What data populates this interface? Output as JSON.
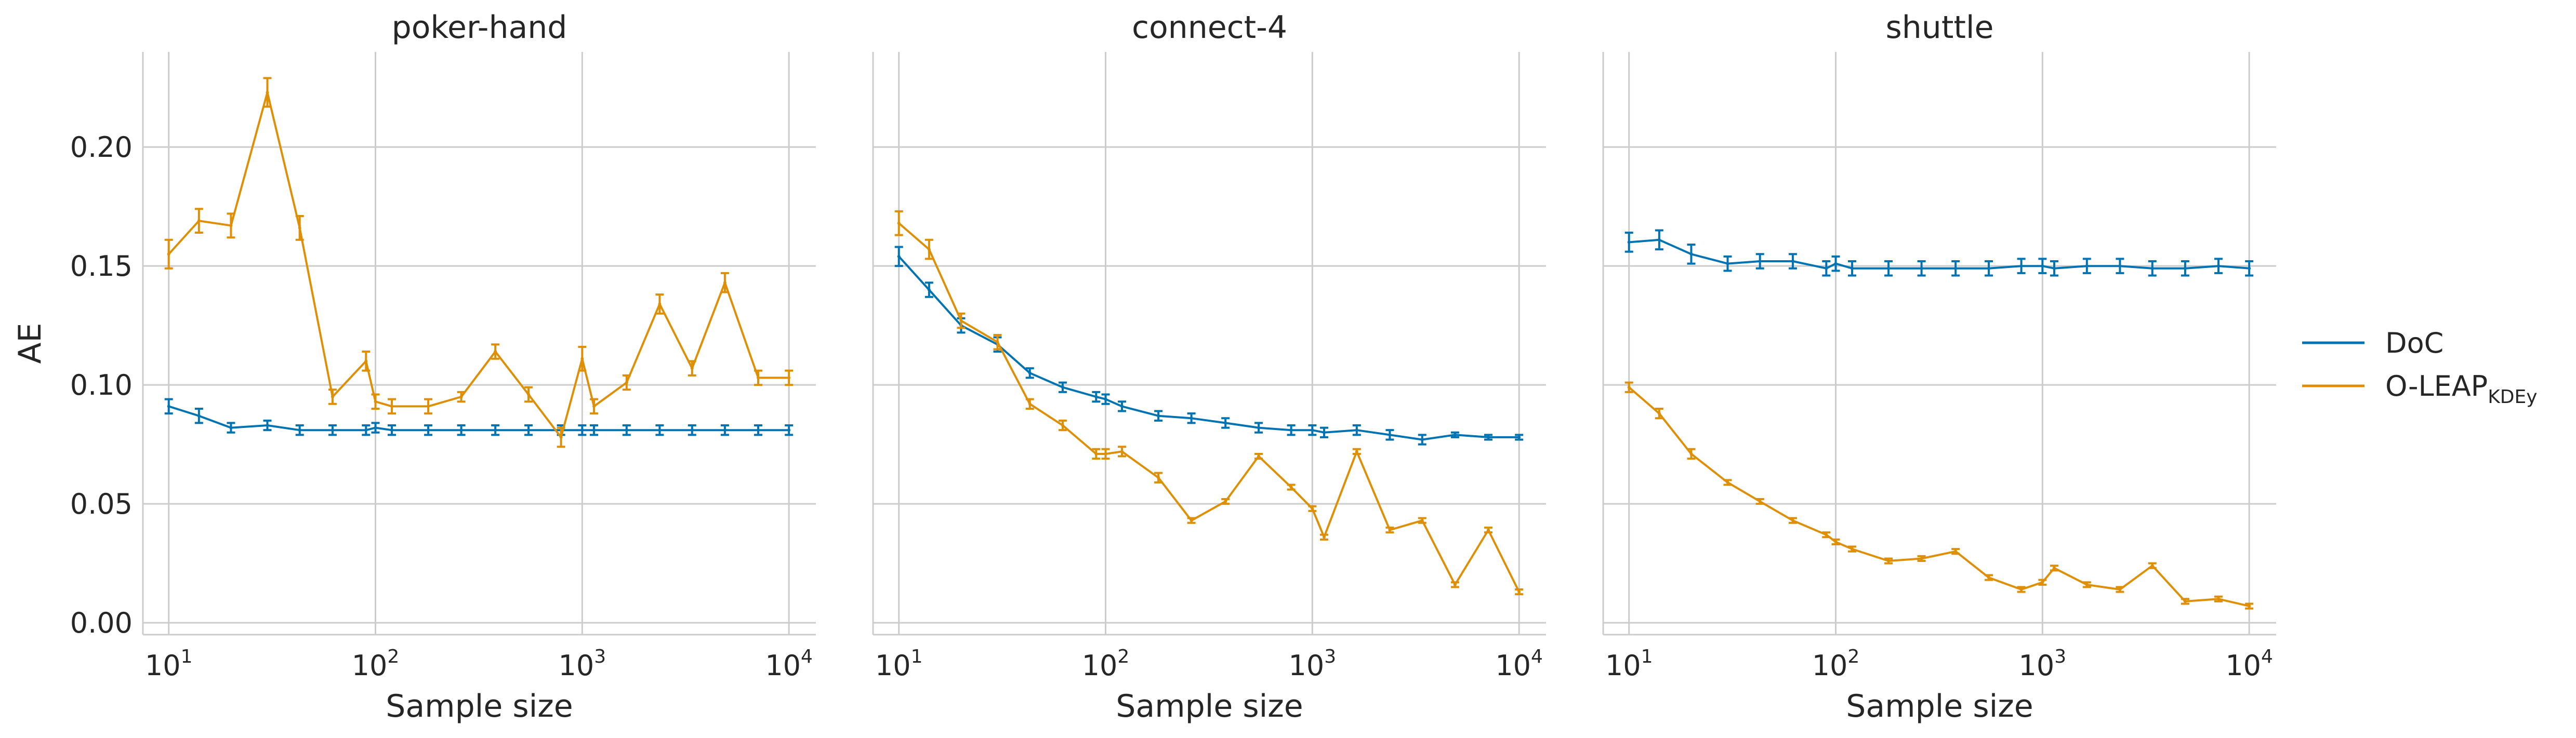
{
  "chart_data": {
    "type": "line",
    "ylabel": "AE",
    "xlabel": "Sample size",
    "xscale": "log",
    "xlim": [
      7.5,
      13500
    ],
    "ylim": [
      -0.005,
      0.24
    ],
    "yticks": [
      0.0,
      0.05,
      0.1,
      0.15,
      0.2
    ],
    "ytick_labels": [
      "0.00",
      "0.05",
      "0.10",
      "0.15",
      "0.20"
    ],
    "xticks": [
      10,
      100,
      1000,
      10000
    ],
    "xtick_base": "10",
    "xtick_exponents": [
      "1",
      "2",
      "3",
      "4"
    ],
    "grid": true,
    "legend_placement": "right",
    "legend": [
      {
        "label": "DoC",
        "sub": "",
        "color": "#0173b2"
      },
      {
        "label": "O-LEAP",
        "sub": "KDEy",
        "color": "#de8f05"
      }
    ],
    "x": [
      10,
      14,
      20,
      30,
      43,
      62,
      90,
      100,
      120,
      180,
      260,
      380,
      550,
      790,
      1000,
      1140,
      1640,
      2370,
      3400,
      4900,
      7100,
      10000
    ],
    "panels": [
      {
        "title": "poker-hand",
        "series": [
          {
            "name": "DoC",
            "values": [
              0.091,
              0.087,
              0.082,
              0.083,
              0.081,
              0.081,
              0.081,
              0.082,
              0.081,
              0.081,
              0.081,
              0.081,
              0.081,
              0.081,
              0.081,
              0.081,
              0.081,
              0.081,
              0.081,
              0.081,
              0.081,
              0.081
            ],
            "err": [
              0.003,
              0.003,
              0.002,
              0.002,
              0.002,
              0.002,
              0.002,
              0.002,
              0.002,
              0.002,
              0.002,
              0.002,
              0.002,
              0.002,
              0.002,
              0.002,
              0.002,
              0.002,
              0.002,
              0.002,
              0.002,
              0.002
            ]
          },
          {
            "name": "O-LEAP",
            "values": [
              0.155,
              0.169,
              0.167,
              0.223,
              0.166,
              0.095,
              0.11,
              0.093,
              0.091,
              0.091,
              0.095,
              0.114,
              0.096,
              0.078,
              0.111,
              0.091,
              0.101,
              0.134,
              0.107,
              0.143,
              0.103,
              0.103
            ],
            "err": [
              0.006,
              0.005,
              0.005,
              0.006,
              0.005,
              0.003,
              0.004,
              0.003,
              0.003,
              0.003,
              0.002,
              0.003,
              0.003,
              0.004,
              0.005,
              0.003,
              0.003,
              0.004,
              0.003,
              0.004,
              0.003,
              0.003
            ]
          }
        ]
      },
      {
        "title": "connect-4",
        "series": [
          {
            "name": "DoC",
            "values": [
              0.154,
              0.14,
              0.125,
              0.117,
              0.105,
              0.099,
              0.095,
              0.094,
              0.091,
              0.087,
              0.086,
              0.084,
              0.082,
              0.081,
              0.081,
              0.08,
              0.081,
              0.079,
              0.077,
              0.079,
              0.078,
              0.078
            ],
            "err": [
              0.004,
              0.003,
              0.003,
              0.003,
              0.002,
              0.002,
              0.002,
              0.002,
              0.002,
              0.002,
              0.002,
              0.002,
              0.002,
              0.002,
              0.002,
              0.002,
              0.002,
              0.002,
              0.002,
              0.001,
              0.001,
              0.001
            ]
          },
          {
            "name": "O-LEAP",
            "values": [
              0.168,
              0.157,
              0.127,
              0.118,
              0.092,
              0.083,
              0.071,
              0.071,
              0.072,
              0.061,
              0.043,
              0.051,
              0.07,
              0.057,
              0.048,
              0.036,
              0.072,
              0.039,
              0.043,
              0.016,
              0.039,
              0.013
            ],
            "err": [
              0.005,
              0.004,
              0.003,
              0.003,
              0.002,
              0.002,
              0.002,
              0.002,
              0.002,
              0.002,
              0.001,
              0.001,
              0.001,
              0.001,
              0.001,
              0.001,
              0.001,
              0.001,
              0.001,
              0.001,
              0.001,
              0.001
            ]
          }
        ]
      },
      {
        "title": "shuttle",
        "series": [
          {
            "name": "DoC",
            "values": [
              0.16,
              0.161,
              0.155,
              0.151,
              0.152,
              0.152,
              0.149,
              0.151,
              0.149,
              0.149,
              0.149,
              0.149,
              0.149,
              0.15,
              0.15,
              0.149,
              0.15,
              0.15,
              0.149,
              0.149,
              0.15,
              0.149
            ],
            "err": [
              0.004,
              0.004,
              0.004,
              0.003,
              0.003,
              0.003,
              0.003,
              0.003,
              0.003,
              0.003,
              0.003,
              0.003,
              0.003,
              0.003,
              0.003,
              0.003,
              0.003,
              0.003,
              0.003,
              0.003,
              0.003,
              0.003
            ]
          },
          {
            "name": "O-LEAP",
            "values": [
              0.099,
              0.088,
              0.071,
              0.059,
              0.051,
              0.043,
              0.037,
              0.034,
              0.031,
              0.026,
              0.027,
              0.03,
              0.019,
              0.014,
              0.017,
              0.023,
              0.016,
              0.014,
              0.024,
              0.009,
              0.01,
              0.007
            ],
            "err": [
              0.002,
              0.002,
              0.002,
              0.001,
              0.001,
              0.001,
              0.001,
              0.001,
              0.001,
              0.001,
              0.001,
              0.001,
              0.001,
              0.001,
              0.001,
              0.001,
              0.001,
              0.001,
              0.001,
              0.001,
              0.001,
              0.001
            ]
          }
        ]
      }
    ]
  }
}
